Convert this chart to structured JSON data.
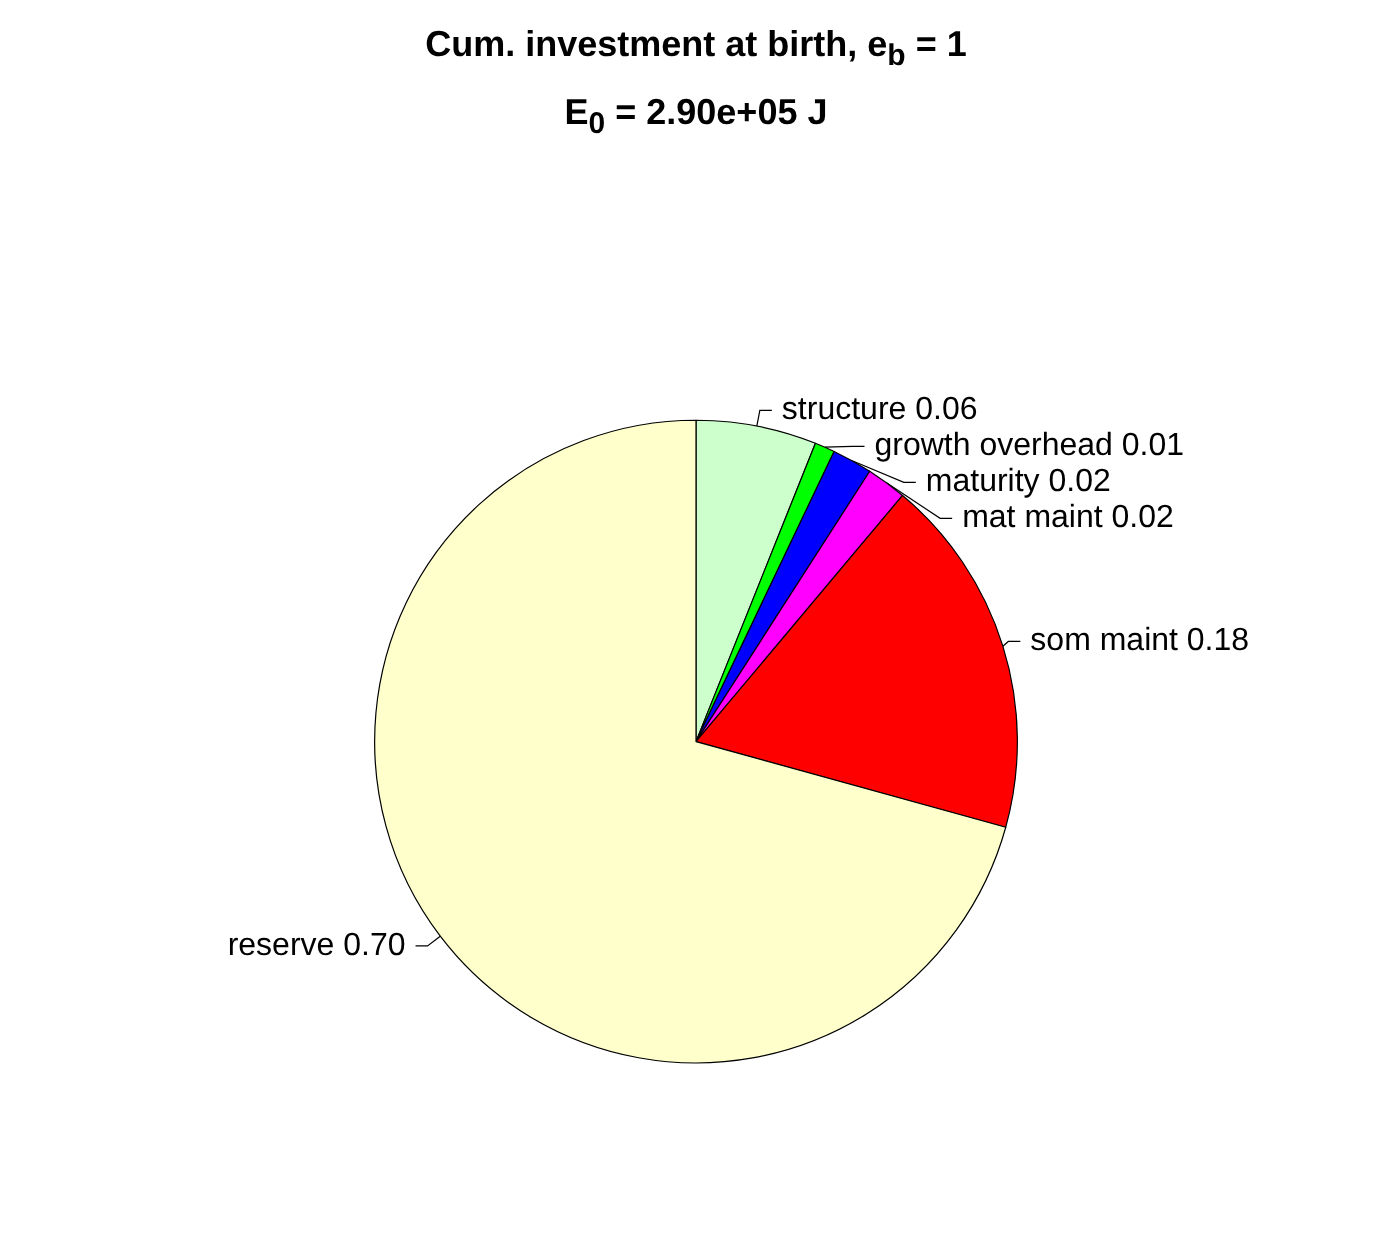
{
  "chart_data": {
    "type": "pie",
    "title": "Cum. investment at birth, e$_{b}$ = 1",
    "subtitle": "E$_{0}$ = 2.90e+05 J",
    "categories": [
      "structure",
      "growth overhead",
      "maturity",
      "mat maint",
      "som maint",
      "reserve"
    ],
    "values": [
      0.06,
      0.01,
      0.02,
      0.02,
      0.18,
      0.7
    ],
    "value_labels": [
      "0.06",
      "0.01",
      "0.02",
      "0.02",
      "0.18",
      "0.70"
    ],
    "colors": [
      "#ccffcc",
      "#00ff00",
      "#0000ff",
      "#ff00ff",
      "#ff0000",
      "#ffffcc"
    ],
    "legend": false
  }
}
